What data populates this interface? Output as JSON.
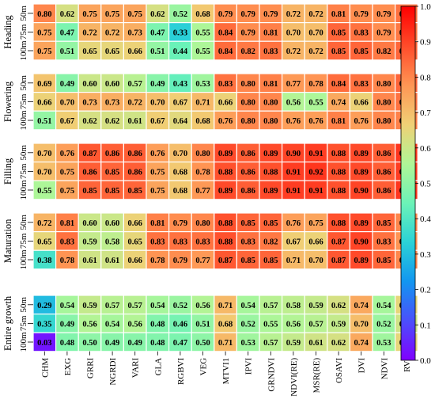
{
  "chart_data": {
    "type": "heatmap",
    "columns": [
      "CHM",
      "EXG",
      "GRRI",
      "NGRDI",
      "VARI",
      "GLA",
      "RGBVI",
      "VEG",
      "MTVI1",
      "IPVI",
      "GRNDVI",
      "NDVI(RE)",
      "MSR(RE)",
      "OSAVI",
      "DVI",
      "NDVI",
      "RVI"
    ],
    "row_labels": [
      "50m",
      "75m",
      "100m"
    ],
    "colorbar": {
      "min": 0.0,
      "max": 1.0,
      "ticks": [
        "0.0",
        "0.1",
        "0.2",
        "0.3",
        "0.4",
        "0.5",
        "0.6",
        "0.7",
        "0.8",
        "0.9",
        "1.0"
      ],
      "colors": [
        "#8000ff",
        "#4b4ffb",
        "#1296f0",
        "#2bd2d6",
        "#6cf3b7",
        "#b0f696",
        "#f0d075",
        "#ff9554",
        "#ff4b2a",
        "#ff0000"
      ]
    },
    "groups": [
      {
        "name": "Heading",
        "values": [
          [
            0.8,
            0.62,
            0.75,
            0.75,
            0.75,
            0.62,
            0.52,
            0.68,
            0.79,
            0.79,
            0.79,
            0.72,
            0.72,
            0.81,
            0.79,
            0.79,
            0.83
          ],
          [
            0.75,
            0.47,
            0.72,
            0.72,
            0.73,
            0.47,
            0.33,
            0.55,
            0.84,
            0.79,
            0.81,
            0.7,
            0.7,
            0.85,
            0.83,
            0.79,
            0.82
          ],
          [
            0.75,
            0.51,
            0.65,
            0.65,
            0.66,
            0.51,
            0.44,
            0.55,
            0.84,
            0.82,
            0.83,
            0.72,
            0.72,
            0.85,
            0.85,
            0.82,
            0.85
          ]
        ]
      },
      {
        "name": "Flowering",
        "values": [
          [
            0.69,
            0.49,
            0.6,
            0.6,
            0.57,
            0.49,
            0.43,
            0.53,
            0.83,
            0.8,
            0.81,
            0.77,
            0.78,
            0.84,
            0.83,
            0.8,
            0.85
          ],
          [
            0.66,
            0.7,
            0.73,
            0.73,
            0.72,
            0.7,
            0.67,
            0.71,
            0.66,
            0.8,
            0.8,
            0.56,
            0.55,
            0.74,
            0.66,
            0.8,
            0.83
          ],
          [
            0.51,
            0.67,
            0.62,
            0.62,
            0.61,
            0.67,
            0.64,
            0.68,
            0.76,
            0.8,
            0.8,
            0.76,
            0.76,
            0.81,
            0.76,
            0.8,
            0.81
          ]
        ]
      },
      {
        "name": "Filling",
        "values": [
          [
            0.7,
            0.76,
            0.87,
            0.86,
            0.86,
            0.76,
            0.7,
            0.8,
            0.89,
            0.86,
            0.89,
            0.9,
            0.91,
            0.88,
            0.89,
            0.86,
            0.92
          ],
          [
            0.7,
            0.75,
            0.86,
            0.85,
            0.86,
            0.75,
            0.68,
            0.78,
            0.88,
            0.86,
            0.88,
            0.91,
            0.92,
            0.88,
            0.89,
            0.86,
            0.91
          ],
          [
            0.55,
            0.75,
            0.85,
            0.85,
            0.85,
            0.75,
            0.68,
            0.77,
            0.89,
            0.86,
            0.89,
            0.91,
            0.91,
            0.88,
            0.9,
            0.86,
            0.92
          ]
        ]
      },
      {
        "name": "Maturation",
        "values": [
          [
            0.72,
            0.81,
            0.6,
            0.6,
            0.66,
            0.81,
            0.79,
            0.8,
            0.88,
            0.85,
            0.85,
            0.76,
            0.75,
            0.88,
            0.89,
            0.85,
            0.8
          ],
          [
            0.65,
            0.83,
            0.59,
            0.58,
            0.65,
            0.83,
            0.83,
            0.83,
            0.88,
            0.83,
            0.82,
            0.67,
            0.66,
            0.87,
            0.9,
            0.83,
            0.78
          ],
          [
            0.38,
            0.78,
            0.61,
            0.61,
            0.66,
            0.78,
            0.79,
            0.77,
            0.87,
            0.85,
            0.85,
            0.71,
            0.7,
            0.87,
            0.89,
            0.85,
            0.8
          ]
        ]
      },
      {
        "name": "Entire growth",
        "values": [
          [
            0.29,
            0.54,
            0.59,
            0.57,
            0.57,
            0.54,
            0.52,
            0.56,
            0.71,
            0.54,
            0.57,
            0.58,
            0.59,
            0.62,
            0.74,
            0.54,
            0.65
          ],
          [
            0.35,
            0.49,
            0.56,
            0.54,
            0.56,
            0.48,
            0.46,
            0.51,
            0.68,
            0.52,
            0.55,
            0.56,
            0.57,
            0.59,
            0.7,
            0.52,
            0.61
          ],
          [
            0.03,
            0.48,
            0.5,
            0.49,
            0.49,
            0.48,
            0.47,
            0.5,
            0.71,
            0.53,
            0.57,
            0.59,
            0.61,
            0.62,
            0.74,
            0.53,
            0.65
          ]
        ]
      }
    ]
  }
}
